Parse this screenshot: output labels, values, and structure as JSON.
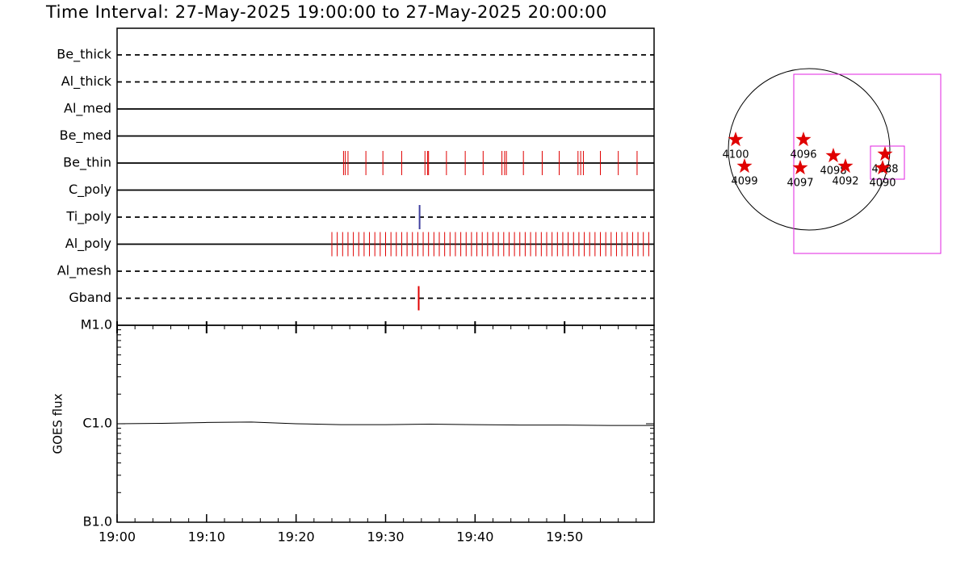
{
  "chart_data": [
    {
      "type": "timeline",
      "title": "Time Interval: 27-May-2025 19:00:00 to 27-May-2025 20:00:00",
      "xlim": [
        0,
        60
      ],
      "series": [
        {
          "name": "Be_thick",
          "line": "dashed",
          "color": "#e00000",
          "values": []
        },
        {
          "name": "Al_thick",
          "line": "dashed",
          "color": "#e00000",
          "values": []
        },
        {
          "name": "Al_med",
          "line": "solid",
          "color": "#e00000",
          "values": []
        },
        {
          "name": "Be_med",
          "line": "solid",
          "color": "#e00000",
          "values": []
        },
        {
          "name": "Be_thin",
          "line": "solid",
          "color": "#e00000",
          "values": [
            25.3,
            25.5,
            25.8,
            27.8,
            29.7,
            31.8,
            34.4,
            34.7,
            34.8,
            36.8,
            38.9,
            40.9,
            43.0,
            43.3,
            43.5,
            45.4,
            47.5,
            49.4,
            51.5,
            51.8,
            52.1,
            54.0,
            56.0,
            58.1
          ]
        },
        {
          "name": "C_poly",
          "line": "solid",
          "color": "#e00000",
          "values": []
        },
        {
          "name": "Ti_poly",
          "line": "dashed",
          "color": "#4040a0",
          "values": [
            33.8
          ]
        },
        {
          "name": "Al_poly",
          "line": "solid",
          "color": "#e00000",
          "values": [
            24.0,
            24.6,
            25.2,
            25.8,
            26.4,
            27.0,
            27.6,
            28.2,
            28.8,
            29.4,
            30.0,
            30.6,
            31.2,
            31.8,
            32.4,
            33.0,
            33.6,
            34.2,
            34.8,
            35.4,
            36.0,
            36.6,
            37.2,
            37.8,
            38.4,
            39.0,
            39.6,
            40.2,
            40.8,
            41.4,
            42.0,
            42.6,
            43.2,
            43.8,
            44.4,
            45.0,
            45.6,
            46.2,
            46.8,
            47.4,
            48.0,
            48.6,
            49.2,
            49.8,
            50.4,
            51.0,
            51.6,
            52.2,
            52.8,
            53.4,
            54.0,
            54.6,
            55.2,
            55.8,
            56.4,
            57.0,
            57.6,
            58.2,
            58.8,
            59.4
          ]
        },
        {
          "name": "Al_mesh",
          "line": "dashed",
          "color": "#e00000",
          "values": []
        },
        {
          "name": "Gband",
          "line": "dashed",
          "color": "#e00000",
          "values": [
            33.7
          ]
        }
      ]
    },
    {
      "type": "line",
      "ylabel": "GOES flux",
      "log_y": true,
      "color": "#000000",
      "xlim": [
        0,
        60
      ],
      "xticks": [
        {
          "value": 0,
          "label": "19:00"
        },
        {
          "value": 10,
          "label": "19:10"
        },
        {
          "value": 20,
          "label": "19:20"
        },
        {
          "value": 30,
          "label": "19:30"
        },
        {
          "value": 40,
          "label": "19:40"
        },
        {
          "value": 50,
          "label": "19:50"
        }
      ],
      "ylim": [
        1e-07,
        1e-05
      ],
      "yticks": [
        {
          "value": 1e-07,
          "label": "B1.0"
        },
        {
          "value": 1e-06,
          "label": "C1.0"
        },
        {
          "value": 1e-05,
          "label": "M1.0"
        }
      ],
      "x": [
        0,
        5,
        10,
        15,
        20,
        25,
        30,
        35,
        40,
        45,
        50,
        55,
        60
      ],
      "values": [
        1e-06,
        1.01e-06,
        1.03e-06,
        1.04e-06,
        1e-06,
        9.8e-07,
        9.8e-07,
        9.9e-07,
        9.8e-07,
        9.7e-07,
        9.7e-07,
        9.6e-07,
        9.6e-07
      ]
    },
    {
      "type": "scatter",
      "color": "#e00000",
      "fov_color": "#e020e0",
      "points": [
        {
          "label": "4100",
          "x": -0.91,
          "y": 0.12
        },
        {
          "label": "4099",
          "x": -0.8,
          "y": -0.21
        },
        {
          "label": "4096",
          "x": -0.07,
          "y": 0.12
        },
        {
          "label": "4097",
          "x": -0.11,
          "y": -0.23
        },
        {
          "label": "4098",
          "x": 0.3,
          "y": -0.08
        },
        {
          "label": "4092",
          "x": 0.45,
          "y": -0.21
        },
        {
          "label": "4088",
          "x": 0.94,
          "y": -0.06
        },
        {
          "label": "4090",
          "x": 0.91,
          "y": -0.23
        }
      ],
      "fov": [
        {
          "x0": -0.19,
          "y0": 0.93,
          "x1": 1.63,
          "y1": -1.29
        },
        {
          "x0": 0.76,
          "y0": 0.04,
          "x1": 1.18,
          "y1": -0.37
        }
      ]
    }
  ]
}
